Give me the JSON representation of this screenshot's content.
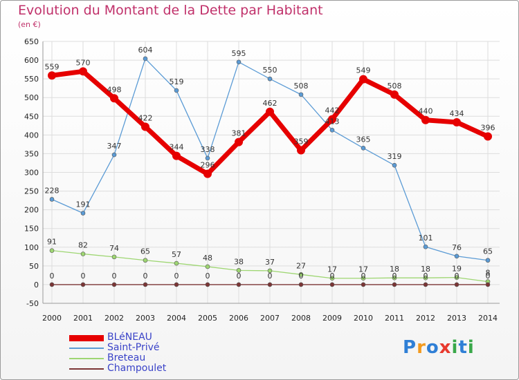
{
  "title": "Evolution du Montant de la Dette par Habitant",
  "subtitle": "(en €)",
  "logo": {
    "text": "Proxiti",
    "colors": [
      "#2f7fd6",
      "#f29a1f",
      "#2f7fd6",
      "#e83a2e",
      "#3aa84a",
      "#2f7fd6",
      "#3aa84a"
    ]
  },
  "chart_data": {
    "type": "line",
    "x": [
      "2000",
      "2001",
      "2002",
      "2003",
      "2004",
      "2005",
      "2006",
      "2007",
      "2008",
      "2009",
      "2010",
      "2011",
      "2012",
      "2013",
      "2014"
    ],
    "ylim": [
      -50,
      650
    ],
    "yticks": [
      -50,
      0,
      50,
      100,
      150,
      200,
      250,
      300,
      350,
      400,
      450,
      500,
      550,
      600,
      650
    ],
    "grid": true,
    "legend_position": "bottom-left",
    "series": [
      {
        "name": "Saint-Privé",
        "color": "#5b9bd5",
        "values": [
          228,
          191,
          347,
          604,
          519,
          338,
          595,
          550,
          508,
          413,
          365,
          319,
          101,
          76,
          65
        ]
      },
      {
        "name": "Breteau",
        "color": "#9ed672",
        "values": [
          91,
          82,
          74,
          65,
          57,
          48,
          38,
          37,
          27,
          17,
          17,
          18,
          18,
          19,
          8
        ]
      },
      {
        "name": "Champoulet",
        "color": "#7b3535",
        "values": [
          0,
          0,
          0,
          0,
          0,
          0,
          0,
          0,
          0,
          0,
          0,
          0,
          0,
          0,
          0
        ]
      },
      {
        "name": "BLéNEAU",
        "color": "#e60000",
        "values": [
          559,
          570,
          498,
          422,
          344,
          296,
          381,
          462,
          359,
          442,
          549,
          508,
          440,
          434,
          396
        ]
      }
    ],
    "labels": [
      {
        "series": 0,
        "values": [
          "228",
          "191",
          "347",
          "604",
          "519",
          "338",
          "595",
          "550",
          "508",
          "413",
          "365",
          "319",
          "101",
          "76",
          "65"
        ]
      },
      {
        "series": 1,
        "values": [
          "91",
          "82",
          "74",
          "65",
          "57",
          "48",
          "38",
          "37",
          "27",
          "17",
          "17",
          "18",
          "18",
          "19",
          "8"
        ]
      },
      {
        "series": 2,
        "values": [
          "0",
          "0",
          "0",
          "0",
          "0",
          "0",
          "0",
          "0",
          "0",
          "0",
          "0",
          "0",
          "0",
          "0",
          "0"
        ]
      },
      {
        "series": 3,
        "values": [
          "559",
          "570",
          "498",
          "422",
          "344",
          "296",
          "381",
          "462",
          "359",
          "442",
          "549",
          "508",
          "440",
          "434",
          "396"
        ]
      }
    ]
  },
  "legend": [
    {
      "label": "BLéNEAU",
      "color": "#e60000"
    },
    {
      "label": "Saint-Privé",
      "color": "#5b9bd5"
    },
    {
      "label": "Breteau",
      "color": "#9ed672"
    },
    {
      "label": "Champoulet",
      "color": "#7b3535"
    }
  ]
}
